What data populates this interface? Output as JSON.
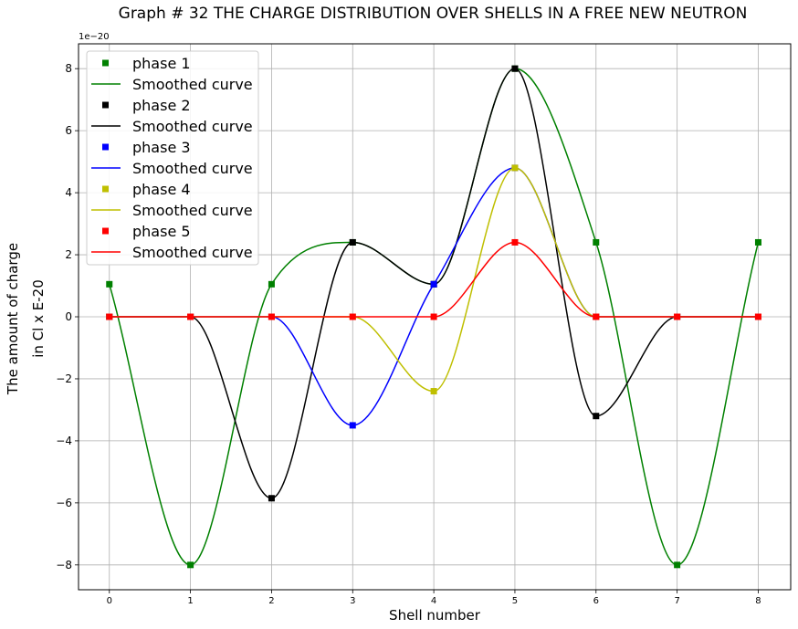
{
  "chart_data": {
    "type": "line",
    "title": "Graph # 32 THE CHARGE DISTRIBUTION OVER SHELLS IN A FREE NEW NEUTRON",
    "xlabel": "Shell number",
    "ylabel_line1": "The amount of charge",
    "ylabel_line2": "in Cl x E-20",
    "y_offset_text": "1e−20",
    "xlim": [
      -0.38,
      8.4
    ],
    "ylim": [
      -8.8,
      8.8
    ],
    "x_ticks": [
      0,
      1,
      2,
      3,
      4,
      5,
      6,
      7,
      8
    ],
    "y_ticks": [
      -8,
      -6,
      -4,
      -2,
      0,
      2,
      4,
      6,
      8
    ],
    "grid": true,
    "legend_position": "top-left",
    "x": [
      0,
      1,
      2,
      3,
      4,
      5,
      6,
      7,
      8
    ],
    "series": [
      {
        "name": "phase 1",
        "curve_name": "Smoothed curve",
        "color": "#008000",
        "values": [
          1.05,
          -8.0,
          1.05,
          2.4,
          1.05,
          8.0,
          2.4,
          -8.0,
          2.4
        ]
      },
      {
        "name": "phase 2",
        "curve_name": "Smoothed curve",
        "color": "#000000",
        "values": [
          0,
          0,
          -5.85,
          2.4,
          1.05,
          8.0,
          -3.2,
          0,
          0
        ]
      },
      {
        "name": "phase 3",
        "curve_name": "Smoothed curve",
        "color": "#0000ff",
        "values": [
          0,
          0,
          0,
          -3.5,
          1.05,
          4.8,
          0,
          0,
          0
        ]
      },
      {
        "name": "phase 4",
        "curve_name": "Smoothed curve",
        "color": "#bfbf00",
        "values": [
          0,
          0,
          0,
          0,
          -2.4,
          4.8,
          0,
          0,
          0
        ]
      },
      {
        "name": "phase 5",
        "curve_name": "Smoothed curve",
        "color": "#ff0000",
        "values": [
          0,
          0,
          0,
          0,
          0,
          2.4,
          0,
          0,
          0
        ]
      }
    ]
  }
}
